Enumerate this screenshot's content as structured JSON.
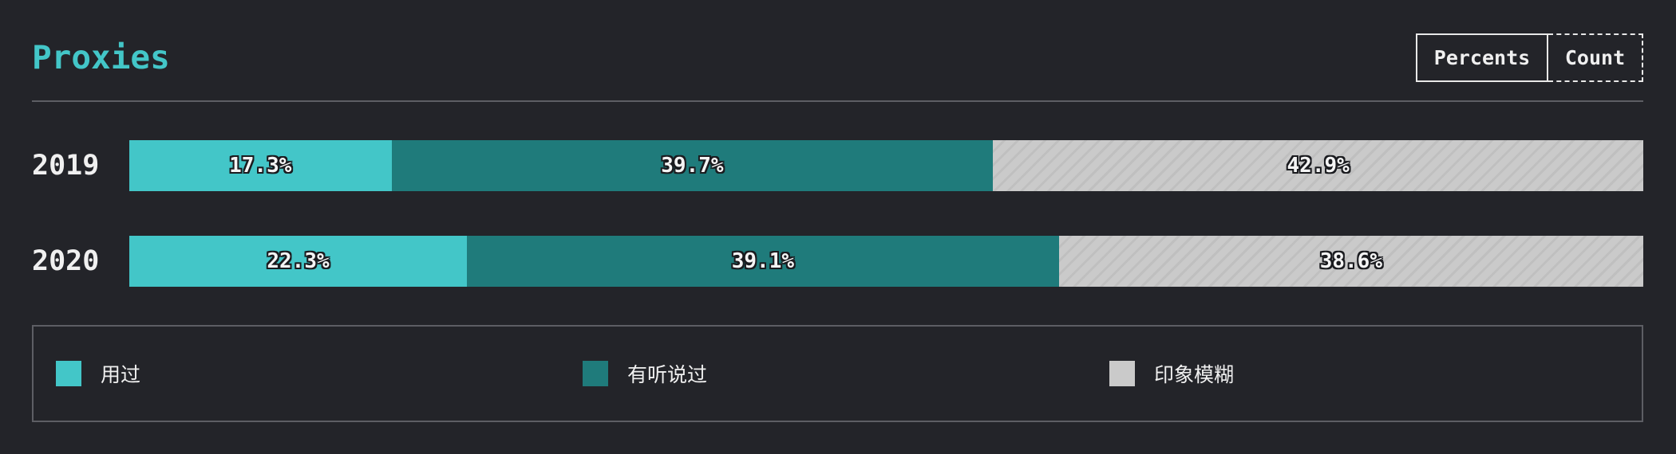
{
  "title": "Proxies",
  "toggle": {
    "percents_label": "Percents",
    "count_label": "Count",
    "active": "Percents"
  },
  "colors": {
    "used": "#43c6c8",
    "heard": "#1f7b7b",
    "vague": "#cacaca"
  },
  "chart_data": {
    "type": "bar",
    "orientation": "horizontal",
    "stacked": true,
    "unit": "%",
    "categories": [
      "2019",
      "2020"
    ],
    "series": [
      {
        "name": "用过",
        "values": [
          17.3,
          22.3
        ],
        "color": "#43c6c8"
      },
      {
        "name": "有听说过",
        "values": [
          39.7,
          39.1
        ],
        "color": "#1f7b7b"
      },
      {
        "name": "印象模糊",
        "values": [
          42.9,
          38.6
        ],
        "color": "#cacaca",
        "pattern": "hatched"
      }
    ],
    "data_labels": [
      [
        "17.3%",
        "39.7%",
        "42.9%"
      ],
      [
        "22.3%",
        "39.1%",
        "38.6%"
      ]
    ],
    "legend_position": "bottom"
  }
}
